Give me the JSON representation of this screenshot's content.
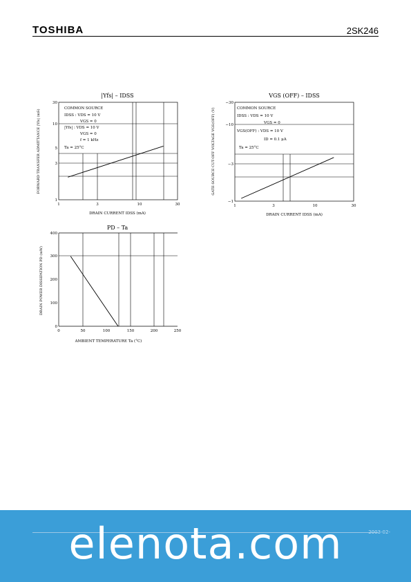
{
  "header": {
    "brand": "TOSHIBA",
    "part_number": "2SK246"
  },
  "charts": [
    {
      "id": "yfs",
      "title": "|Yfs| – IDSS",
      "ylabel": "FORWARD TRANSFER ADMITTANCE |Yfs| (mS)",
      "xlabel": "DRAIN CURRENT IDSS (mA)",
      "conditions": [
        "COMMON SOURCE",
        "IDSS : VDS = 10 V",
        "VGS = 0",
        "|Yfs| : VDS = 10 V",
        "VGS = 0",
        "f = 1 kHz",
        "Ta = 25°C"
      ],
      "x_ticks": [
        "1",
        "3",
        "10",
        "30"
      ],
      "y_ticks": [
        "1",
        "3",
        "5",
        "10",
        "30"
      ]
    },
    {
      "id": "vgsoff",
      "title": "VGS (OFF) – IDSS",
      "ylabel": "GATE-SOURCE CUT-OFF VOLTAGE VGS(OFF) (V)",
      "xlabel": "DRAIN CURRENT IDSS (mA)",
      "conditions": [
        "COMMON SOURCE",
        "IDSS : VDS = 10 V",
        "VGS = 0",
        "VGS(OFF) : VDS = 10 V",
        "ID = 0.1 μA",
        "Ta = 25°C"
      ],
      "x_ticks": [
        "1",
        "3",
        "10",
        "30"
      ],
      "y_ticks": [
        "−1",
        "−3",
        "−10",
        "−30"
      ]
    },
    {
      "id": "pd",
      "title": "PD – Ta",
      "ylabel": "DRAIN POWER DISSIPATION PD (mW)",
      "xlabel": "AMBIENT TEMPERATURE Ta (°C)",
      "x_ticks": [
        "0",
        "50",
        "100",
        "150",
        "200",
        "250"
      ],
      "y_ticks": [
        "0",
        "100",
        "200",
        "300",
        "400"
      ]
    }
  ],
  "chart_data": [
    {
      "type": "line",
      "title": "|Yfs| – IDSS",
      "xscale": "log",
      "yscale": "log",
      "xlim": [
        1,
        30
      ],
      "ylim": [
        1,
        30
      ],
      "series": [
        {
          "x": [
            1.3,
            20
          ],
          "y": [
            2.2,
            6.5
          ]
        }
      ]
    },
    {
      "type": "line",
      "title": "VGS (OFF) – IDSS",
      "xscale": "log",
      "yscale": "log",
      "xlim": [
        1,
        30
      ],
      "ylim": [
        -1,
        -30
      ],
      "series": [
        {
          "x": [
            1.2,
            17
          ],
          "y": [
            -1.1,
            -4.5
          ]
        }
      ]
    },
    {
      "type": "line",
      "title": "PD – Ta",
      "xlim": [
        0,
        250
      ],
      "ylim": [
        0,
        400
      ],
      "series": [
        {
          "x": [
            25,
            125
          ],
          "y": [
            300,
            0
          ]
        }
      ]
    }
  ],
  "footer": {
    "watermark": "elenota.com",
    "page": "2003-02-"
  }
}
